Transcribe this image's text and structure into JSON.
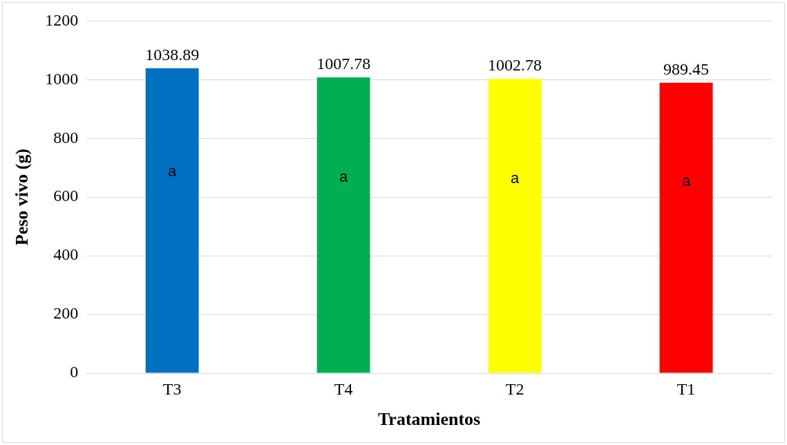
{
  "chart_data": {
    "type": "bar",
    "xlabel": "Tratamientos",
    "ylabel": "Peso vivo (g)",
    "categories": [
      "T3",
      "T4",
      "T2",
      "T1"
    ],
    "values": [
      1038.89,
      1007.78,
      1002.78,
      989.45
    ],
    "colors": [
      "#0070c0",
      "#00b050",
      "#ffff00",
      "#ff0000"
    ],
    "ylim": [
      0,
      1200
    ],
    "yticks": [
      0,
      200,
      400,
      600,
      800,
      1000,
      1200
    ],
    "grid": "y",
    "legend": false,
    "data_labels": true,
    "annotations": [
      "a",
      "a",
      "a",
      "a"
    ]
  }
}
